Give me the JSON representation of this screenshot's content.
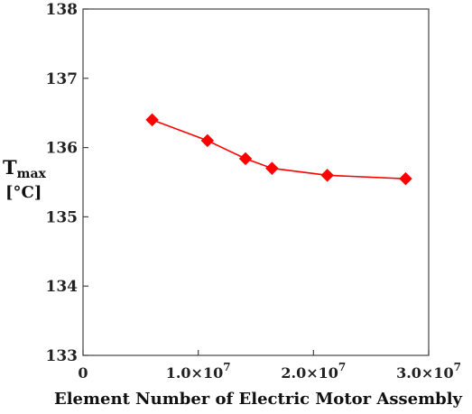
{
  "chart_data": {
    "type": "line",
    "xlabel": "Element Number of Electric Motor Assembly",
    "ylabel_main": "T",
    "ylabel_sub": "max",
    "ylabel_unit": "[°C]",
    "xlim": [
      0,
      30000000
    ],
    "ylim": [
      133,
      138
    ],
    "x_ticks": [
      {
        "value": 0,
        "mantissa": "0",
        "exponent": ""
      },
      {
        "value": 10000000,
        "mantissa": "1.0×10",
        "exponent": "7"
      },
      {
        "value": 20000000,
        "mantissa": "2.0×10",
        "exponent": "7"
      },
      {
        "value": 30000000,
        "mantissa": "3.0×10",
        "exponent": "7"
      }
    ],
    "y_ticks": [
      "133",
      "134",
      "135",
      "136",
      "137",
      "138"
    ],
    "series": [
      {
        "color": "#ff0000",
        "marker": "diamond",
        "x": [
          6000000,
          10800000,
          14100000,
          16400000,
          21200000,
          28000000
        ],
        "y": [
          136.4,
          136.1,
          135.84,
          135.7,
          135.6,
          135.55
        ]
      }
    ]
  }
}
